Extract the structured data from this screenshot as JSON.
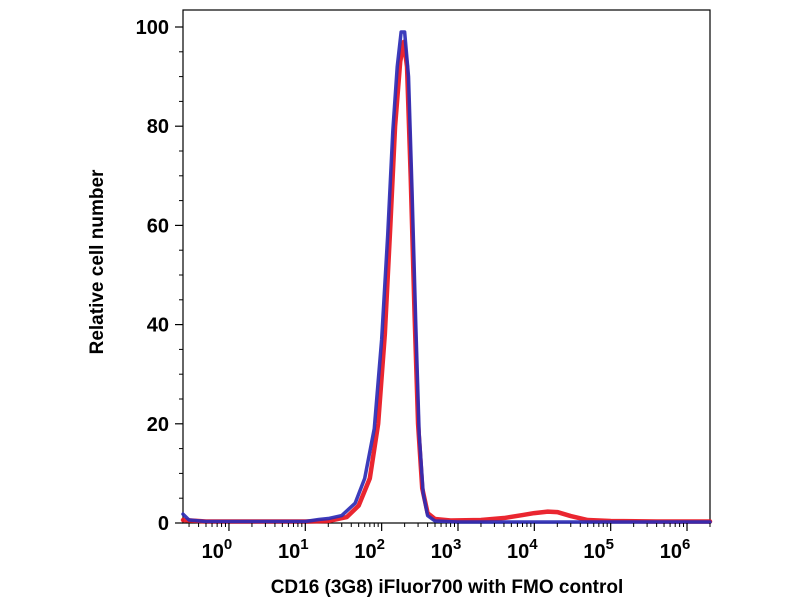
{
  "chart_data": {
    "type": "line",
    "title": "",
    "xlabel": "CD16 (3G8) iFluor700 with FMO control",
    "ylabel": "Relative cell number",
    "x_scale": "log",
    "xlim": [
      0.25,
      2000000
    ],
    "ylim": [
      0,
      100
    ],
    "grid": false,
    "legend": "none",
    "x_tick_labels": [
      {
        "base": "10",
        "exp": "0",
        "value": 1
      },
      {
        "base": "10",
        "exp": "1",
        "value": 10
      },
      {
        "base": "10",
        "exp": "2",
        "value": 100
      },
      {
        "base": "10",
        "exp": "3",
        "value": 1000
      },
      {
        "base": "10",
        "exp": "4",
        "value": 10000
      },
      {
        "base": "10",
        "exp": "5",
        "value": 100000
      },
      {
        "base": "10",
        "exp": "6",
        "value": 1000000
      }
    ],
    "y_ticks": [
      0,
      20,
      40,
      60,
      80,
      100
    ],
    "series": [
      {
        "color": "#e8141e",
        "points": [
          [
            0.25,
            0.6
          ],
          [
            0.5,
            0.3
          ],
          [
            1,
            0.3
          ],
          [
            3,
            0.3
          ],
          [
            10,
            0.3
          ],
          [
            20,
            0.4
          ],
          [
            35,
            1.2
          ],
          [
            50,
            3.5
          ],
          [
            70,
            9
          ],
          [
            90,
            20
          ],
          [
            110,
            38
          ],
          [
            130,
            60
          ],
          [
            150,
            80
          ],
          [
            175,
            93
          ],
          [
            195,
            97
          ],
          [
            215,
            92
          ],
          [
            240,
            70
          ],
          [
            270,
            42
          ],
          [
            300,
            20
          ],
          [
            340,
            7
          ],
          [
            400,
            2
          ],
          [
            500,
            0.8
          ],
          [
            800,
            0.5
          ],
          [
            2000,
            0.6
          ],
          [
            4000,
            1.0
          ],
          [
            7000,
            1.6
          ],
          [
            10000,
            2.0
          ],
          [
            15000,
            2.3
          ],
          [
            20000,
            2.2
          ],
          [
            30000,
            1.4
          ],
          [
            50000,
            0.6
          ],
          [
            100000,
            0.4
          ],
          [
            400000,
            0.3
          ],
          [
            2000000,
            0.3
          ]
        ]
      },
      {
        "color": "#2b2bb5",
        "points": [
          [
            0.25,
            1.8
          ],
          [
            0.3,
            0.6
          ],
          [
            0.5,
            0.3
          ],
          [
            1,
            0.3
          ],
          [
            3,
            0.3
          ],
          [
            10,
            0.3
          ],
          [
            15,
            0.7
          ],
          [
            20,
            0.9
          ],
          [
            30,
            1.5
          ],
          [
            45,
            4
          ],
          [
            60,
            9
          ],
          [
            80,
            19
          ],
          [
            100,
            37
          ],
          [
            120,
            58
          ],
          [
            140,
            79
          ],
          [
            160,
            92
          ],
          [
            180,
            99
          ],
          [
            200,
            99
          ],
          [
            225,
            90
          ],
          [
            250,
            67
          ],
          [
            280,
            40
          ],
          [
            310,
            18
          ],
          [
            350,
            6
          ],
          [
            400,
            1.5
          ],
          [
            500,
            0.4
          ],
          [
            1000,
            0.2
          ],
          [
            10000,
            0.2
          ],
          [
            2000000,
            0.2
          ]
        ]
      }
    ]
  }
}
